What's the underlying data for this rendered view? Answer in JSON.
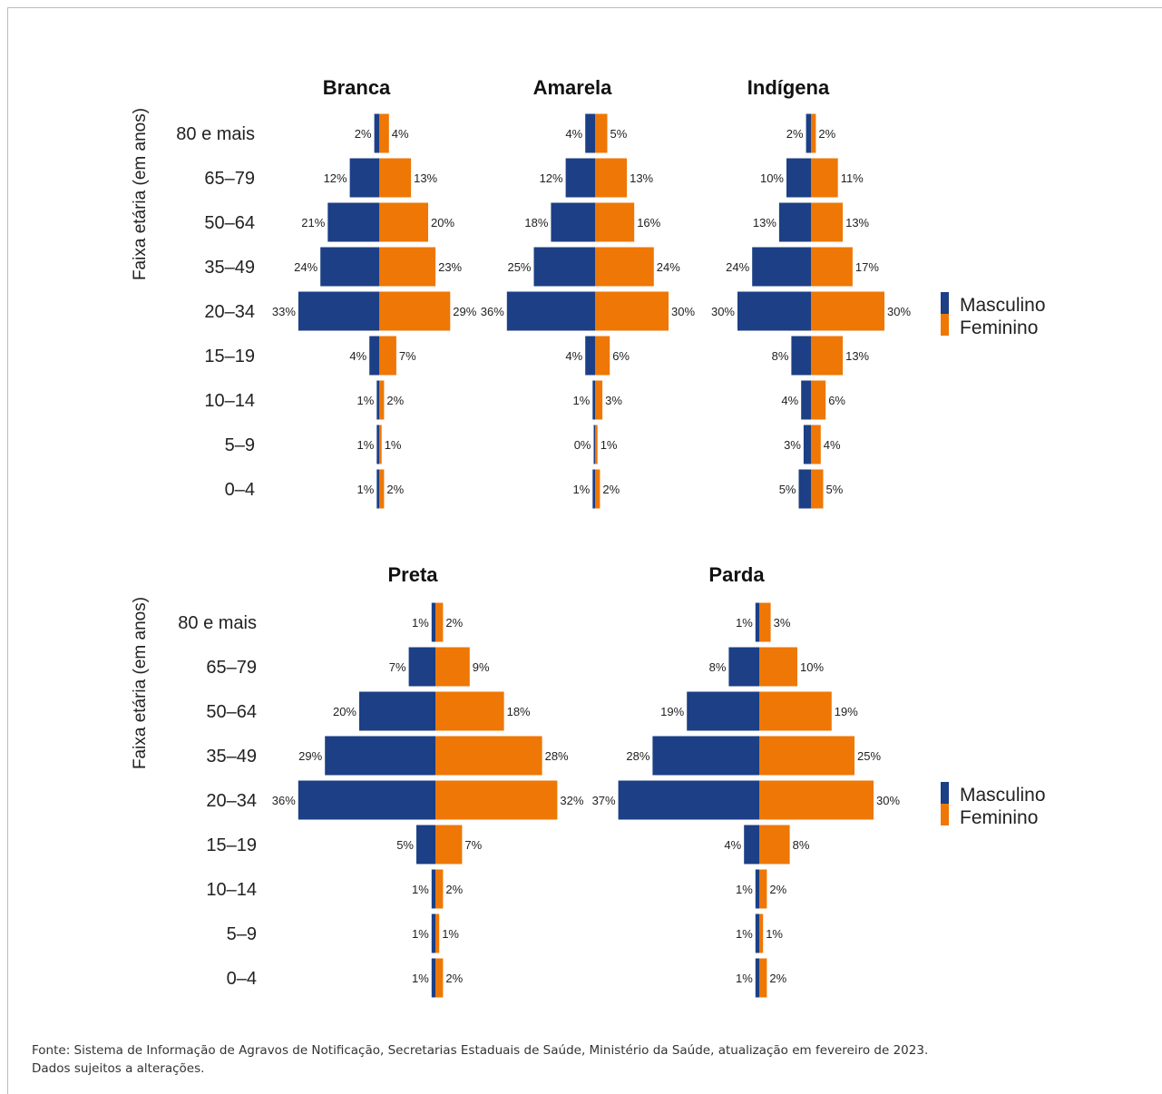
{
  "colors": {
    "masculino": "#1c3f85",
    "feminino": "#ee7705"
  },
  "chart_data": [
    {
      "type": "bar",
      "subtype": "population-pyramid",
      "title": "Branca",
      "ylabel": "Faixa etária (em anos)",
      "categories": [
        "80 e mais",
        "65–79",
        "50–64",
        "35–49",
        "20–34",
        "15–19",
        "10–14",
        "5–9",
        "0–4"
      ],
      "series": [
        {
          "name": "Masculino",
          "values": [
            2,
            12,
            21,
            24,
            33,
            4,
            1,
            1,
            1
          ],
          "labels": [
            "2%",
            "12%",
            "21%",
            "24%",
            "33%",
            "4%",
            "1%",
            "1%",
            "1%"
          ]
        },
        {
          "name": "Feminino",
          "values": [
            4,
            13,
            20,
            23,
            29,
            7,
            2,
            1,
            2
          ],
          "labels": [
            "4%",
            "13%",
            "20%",
            "23%",
            "29%",
            "7%",
            "2%",
            "1%",
            "2%"
          ]
        }
      ],
      "legend": "right"
    },
    {
      "type": "bar",
      "subtype": "population-pyramid",
      "title": "Amarela",
      "categories": [
        "80 e mais",
        "65–79",
        "50–64",
        "35–49",
        "20–34",
        "15–19",
        "10–14",
        "5–9",
        "0–4"
      ],
      "series": [
        {
          "name": "Masculino",
          "values": [
            4,
            12,
            18,
            25,
            36,
            4,
            1,
            0,
            1
          ],
          "labels": [
            "4%",
            "12%",
            "18%",
            "25%",
            "36%",
            "4%",
            "1%",
            "0%",
            "1%"
          ]
        },
        {
          "name": "Feminino",
          "values": [
            5,
            13,
            16,
            24,
            30,
            6,
            3,
            1,
            2
          ],
          "labels": [
            "5%",
            "13%",
            "16%",
            "24%",
            "30%",
            "6%",
            "3%",
            "1%",
            "2%"
          ]
        }
      ]
    },
    {
      "type": "bar",
      "subtype": "population-pyramid",
      "title": "Indígena",
      "categories": [
        "80 e mais",
        "65–79",
        "50–64",
        "35–49",
        "20–34",
        "15–19",
        "10–14",
        "5–9",
        "0–4"
      ],
      "series": [
        {
          "name": "Masculino",
          "values": [
            2,
            10,
            13,
            24,
            30,
            8,
            4,
            3,
            5
          ],
          "labels": [
            "2%",
            "10%",
            "13%",
            "24%",
            "30%",
            "8%",
            "4%",
            "3%",
            "5%"
          ]
        },
        {
          "name": "Feminino",
          "values": [
            2,
            11,
            13,
            17,
            30,
            13,
            6,
            4,
            5
          ],
          "labels": [
            "2%",
            "11%",
            "13%",
            "17%",
            "30%",
            "13%",
            "6%",
            "4%",
            "5%"
          ]
        }
      ]
    },
    {
      "type": "bar",
      "subtype": "population-pyramid",
      "title": "Preta",
      "ylabel": "Faixa etária (em anos)",
      "categories": [
        "80 e mais",
        "65–79",
        "50–64",
        "35–49",
        "20–34",
        "15–19",
        "10–14",
        "5–9",
        "0–4"
      ],
      "series": [
        {
          "name": "Masculino",
          "values": [
            1,
            7,
            20,
            29,
            36,
            5,
            1,
            1,
            1
          ],
          "labels": [
            "1%",
            "7%",
            "20%",
            "29%",
            "36%",
            "5%",
            "1%",
            "1%",
            "1%"
          ]
        },
        {
          "name": "Feminino",
          "values": [
            2,
            9,
            18,
            28,
            32,
            7,
            2,
            1,
            2
          ],
          "labels": [
            "2%",
            "9%",
            "18%",
            "28%",
            "32%",
            "7%",
            "2%",
            "1%",
            "2%"
          ]
        }
      ],
      "legend": "right"
    },
    {
      "type": "bar",
      "subtype": "population-pyramid",
      "title": "Parda",
      "categories": [
        "80 e mais",
        "65–79",
        "50–64",
        "35–49",
        "20–34",
        "15–19",
        "10–14",
        "5–9",
        "0–4"
      ],
      "series": [
        {
          "name": "Masculino",
          "values": [
            1,
            8,
            19,
            28,
            37,
            4,
            1,
            1,
            1
          ],
          "labels": [
            "1%",
            "8%",
            "19%",
            "28%",
            "37%",
            "4%",
            "1%",
            "1%",
            "1%"
          ]
        },
        {
          "name": "Feminino",
          "values": [
            3,
            10,
            19,
            25,
            30,
            8,
            2,
            1,
            2
          ],
          "labels": [
            "3%",
            "10%",
            "19%",
            "25%",
            "30%",
            "8%",
            "2%",
            "1%",
            "2%"
          ]
        }
      ]
    }
  ],
  "legend": {
    "items": [
      "Masculino",
      "Feminino"
    ]
  },
  "source": {
    "line1": "Fonte: Sistema de Informação de Agravos de Notificação, Secretarias Estaduais de Saúde, Ministério da Saúde, atualização em fevereiro de 2023.",
    "line2": "Dados sujeitos a alterações."
  }
}
